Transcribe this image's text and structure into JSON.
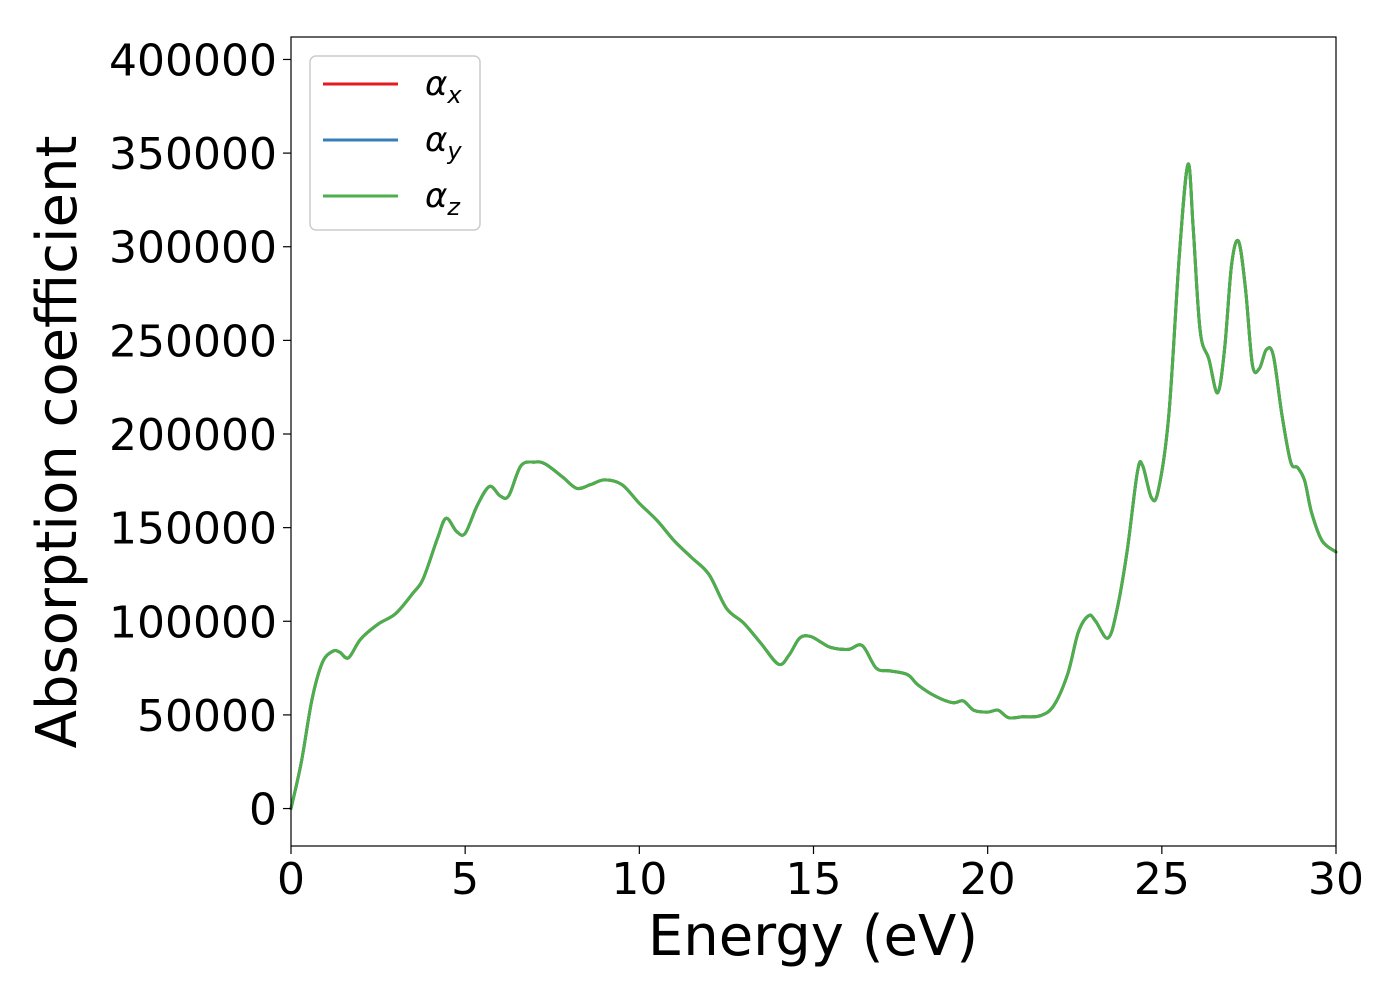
{
  "chart_data": {
    "type": "line",
    "title": "",
    "xlabel": "Energy (eV)",
    "ylabel": "Absorption coefficient",
    "xlim": [
      0,
      30
    ],
    "ylim": [
      -20000,
      412000
    ],
    "x_ticks": [
      0,
      5,
      10,
      15,
      20,
      25,
      30
    ],
    "y_ticks": [
      0,
      50000,
      100000,
      150000,
      200000,
      250000,
      300000,
      350000,
      400000
    ],
    "grid": false,
    "legend": {
      "placement": "top-left"
    },
    "series": [
      {
        "name": "αx",
        "symbol": "α",
        "subscript": "x",
        "color": "#e41a1c"
      },
      {
        "name": "αy",
        "symbol": "α",
        "subscript": "y",
        "color": "#377eb8"
      },
      {
        "name": "αz",
        "symbol": "α",
        "subscript": "z",
        "color": "#4daf4a"
      }
    ],
    "x": [
      0,
      0.3,
      0.6,
      0.9,
      1.2,
      1.4,
      1.65,
      2.0,
      2.5,
      3.0,
      3.5,
      3.8,
      4.2,
      4.45,
      4.75,
      5.0,
      5.35,
      5.7,
      6.0,
      6.25,
      6.6,
      7.0,
      7.3,
      7.8,
      8.2,
      8.6,
      9.0,
      9.5,
      10.0,
      10.5,
      11.0,
      11.5,
      12.0,
      12.5,
      13.0,
      13.5,
      14.0,
      14.3,
      14.6,
      14.9,
      15.2,
      15.5,
      16.0,
      16.4,
      16.8,
      17.2,
      17.7,
      18.0,
      18.5,
      19.0,
      19.3,
      19.6,
      20.0,
      20.3,
      20.6,
      21.0,
      21.5,
      21.9,
      22.3,
      22.6,
      22.9,
      23.1,
      23.45,
      23.7,
      24.0,
      24.3,
      24.45,
      24.7,
      24.9,
      25.2,
      25.5,
      25.75,
      25.9,
      26.1,
      26.35,
      26.6,
      26.8,
      27.0,
      27.2,
      27.4,
      27.6,
      27.8,
      28.0,
      28.2,
      28.45,
      28.7,
      28.9,
      29.1,
      29.3,
      29.6,
      30.0
    ],
    "values": [
      0,
      25000,
      58000,
      78000,
      84000,
      83500,
      80500,
      90500,
      98500,
      104000,
      115000,
      123000,
      144000,
      155000,
      148000,
      147000,
      162000,
      172000,
      167000,
      167000,
      183000,
      185000,
      184000,
      177000,
      171000,
      173000,
      175500,
      173000,
      163000,
      154000,
      143000,
      134000,
      125000,
      107000,
      99000,
      88000,
      77000,
      82000,
      91000,
      92000,
      89000,
      86000,
      85000,
      87000,
      75000,
      73500,
      71500,
      66000,
      60000,
      56500,
      57500,
      52500,
      51500,
      52500,
      48500,
      49000,
      49500,
      55000,
      72000,
      94000,
      103000,
      100000,
      91000,
      105000,
      137000,
      180000,
      183000,
      166000,
      170000,
      210000,
      295000,
      344000,
      310000,
      255000,
      240000,
      222000,
      245000,
      290000,
      303000,
      278000,
      237000,
      235000,
      245000,
      242000,
      210000,
      185000,
      182000,
      175000,
      158000,
      143000,
      137000
    ]
  }
}
